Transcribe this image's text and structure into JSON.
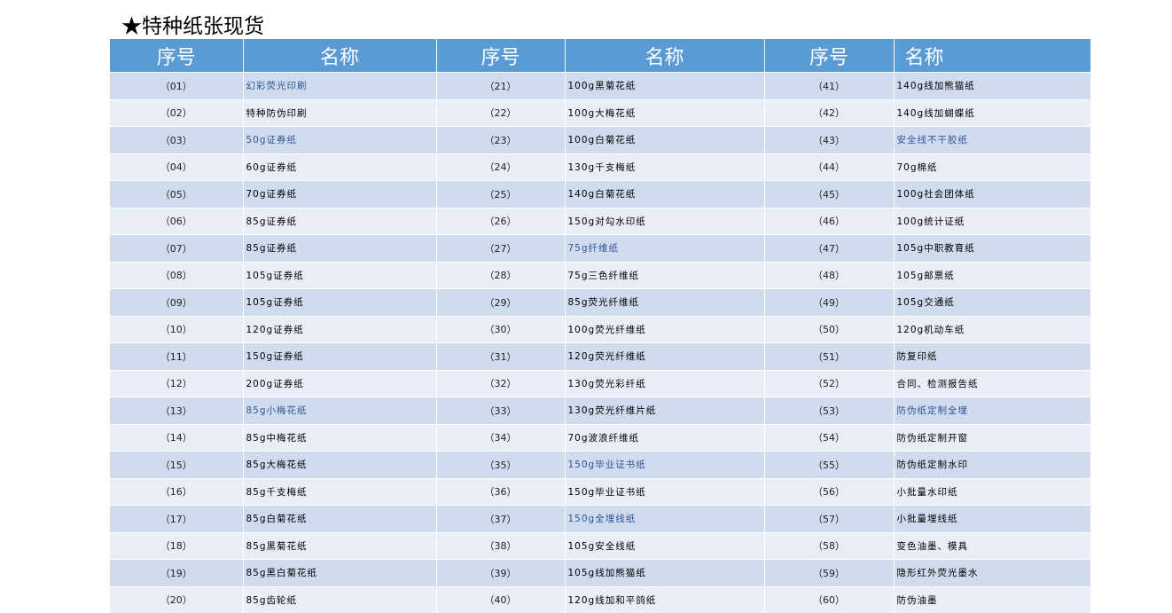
{
  "title": "★特种纸张现货",
  "header": {
    "col_no": "序号",
    "col_name": "名称"
  },
  "colors": {
    "header": "#5b9bd5",
    "row_odd": "#d0dbee",
    "row_even": "#e9edf6",
    "highlight_text": "#2f5597"
  },
  "groups": [
    {
      "items": [
        {
          "no": "（01）",
          "name": "幻彩荧光印刷",
          "highlight": true
        },
        {
          "no": "（02）",
          "name": "特种防伪印刷"
        },
        {
          "no": "（03）",
          "name": "50g证券纸",
          "highlight": true
        },
        {
          "no": "（04）",
          "name": "60g证券纸"
        },
        {
          "no": "（05）",
          "name": "70g证券纸"
        },
        {
          "no": "（06）",
          "name": "85g证券纸"
        },
        {
          "no": "（07）",
          "name": "85g证券纸"
        },
        {
          "no": "（08）",
          "name": "105g证券纸"
        },
        {
          "no": "（09）",
          "name": "105g证券纸"
        },
        {
          "no": "（10）",
          "name": "120g证券纸"
        },
        {
          "no": "（11）",
          "name": "150g证券纸"
        },
        {
          "no": "（12）",
          "name": "200g证券纸"
        },
        {
          "no": "（13）",
          "name": "85g小梅花纸",
          "highlight": true
        },
        {
          "no": "（14）",
          "name": "85g中梅花纸"
        },
        {
          "no": "（15）",
          "name": "85g大梅花纸"
        },
        {
          "no": "（16）",
          "name": "85g千支梅纸"
        },
        {
          "no": "（17）",
          "name": "85g白菊花纸"
        },
        {
          "no": "（18）",
          "name": "85g黑菊花纸"
        },
        {
          "no": "（19）",
          "name": "85g黑白菊花纸"
        },
        {
          "no": "（20）",
          "name": "85g齿轮纸"
        }
      ]
    },
    {
      "items": [
        {
          "no": "（21）",
          "name": "100g黑菊花纸"
        },
        {
          "no": "（22）",
          "name": "100g大梅花纸"
        },
        {
          "no": "（23）",
          "name": "100g白菊花纸"
        },
        {
          "no": "（24）",
          "name": "130g千支梅纸"
        },
        {
          "no": "（25）",
          "name": "140g白菊花纸"
        },
        {
          "no": "（26）",
          "name": "150g对勾水印纸"
        },
        {
          "no": "（27）",
          "name": "75g纤维纸",
          "highlight": true
        },
        {
          "no": "（28）",
          "name": "75g三色纤维纸"
        },
        {
          "no": "（29）",
          "name": "85g荧光纤维纸"
        },
        {
          "no": "（30）",
          "name": "100g荧光纤维纸"
        },
        {
          "no": "（31）",
          "name": "120g荧光纤维纸"
        },
        {
          "no": "（32）",
          "name": "130g荧光彩纤纸"
        },
        {
          "no": "（33）",
          "name": "130g荧光纤维片纸"
        },
        {
          "no": "（34）",
          "name": "70g波浪纤维纸"
        },
        {
          "no": "（35）",
          "name": "150g毕业证书纸",
          "highlight": true
        },
        {
          "no": "（36）",
          "name": "150g毕业证书纸"
        },
        {
          "no": "（37）",
          "name": "150g全埋线纸",
          "highlight": true
        },
        {
          "no": "（38）",
          "name": "105g安全线纸"
        },
        {
          "no": "（39）",
          "name": "105g线加熊猫纸"
        },
        {
          "no": "（40）",
          "name": "120g线加和平鸽纸"
        }
      ]
    },
    {
      "items": [
        {
          "no": "（41）",
          "name": "140g线加熊猫纸"
        },
        {
          "no": "（42）",
          "name": "140g线加蝴蝶纸"
        },
        {
          "no": "（43）",
          "name": "安全线不干胶纸",
          "highlight": true
        },
        {
          "no": "（44）",
          "name": "70g棉纸"
        },
        {
          "no": "（45）",
          "name": "100g社会团体纸"
        },
        {
          "no": "（46）",
          "name": "100g统计证纸"
        },
        {
          "no": "（47）",
          "name": "105g中职教育纸"
        },
        {
          "no": "（48）",
          "name": "105g邮票纸"
        },
        {
          "no": "（49）",
          "name": "105g交通纸"
        },
        {
          "no": "（50）",
          "name": "120g机动车纸"
        },
        {
          "no": "（51）",
          "name": "防复印纸"
        },
        {
          "no": "（52）",
          "name": "合同、检测报告纸"
        },
        {
          "no": "（53）",
          "name": "防伪纸定制全埋",
          "highlight": true
        },
        {
          "no": "（54）",
          "name": "防伪纸定制开窗"
        },
        {
          "no": "（55）",
          "name": "防伪纸定制水印"
        },
        {
          "no": "（56）",
          "name": "小批量水印纸"
        },
        {
          "no": "（57）",
          "name": "小批量埋线纸"
        },
        {
          "no": "（58）",
          "name": "变色油墨、模具"
        },
        {
          "no": "（59）",
          "name": "隐形红外荧光墨水"
        },
        {
          "no": "（60）",
          "name": "防伪油墨"
        }
      ]
    }
  ]
}
